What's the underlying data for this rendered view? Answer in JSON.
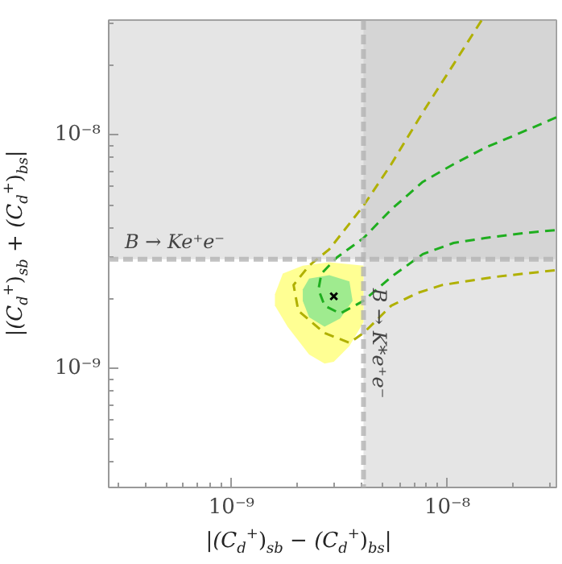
{
  "chart_data": {
    "type": "line",
    "xlabel": "|(C$_{d}$$^{+}$)$_{sb}$ − (C$_{d}$$^{+}$)$_{bs}$|",
    "ylabel": "|(C$_{d}$$^{+}$)$_{sb}$ + (C$_{d}$$^{+}$)$_{bs}$|",
    "log": "xy",
    "grid": false,
    "xlim": [
      2.7e-10,
      3.2e-08
    ],
    "ylim": [
      3.1e-10,
      3.1e-08
    ],
    "xticks": [
      {
        "value": 3e-10,
        "label": null
      },
      {
        "value": 4e-10,
        "label": null
      },
      {
        "value": 5e-10,
        "label": null
      },
      {
        "value": 6e-10,
        "label": null
      },
      {
        "value": 7e-10,
        "label": null
      },
      {
        "value": 8e-10,
        "label": null
      },
      {
        "value": 9e-10,
        "label": null
      },
      {
        "value": 1e-09,
        "label": "10⁻⁹"
      },
      {
        "value": 2e-09,
        "label": null
      },
      {
        "value": 3e-09,
        "label": null
      },
      {
        "value": 4e-09,
        "label": null
      },
      {
        "value": 5e-09,
        "label": null
      },
      {
        "value": 6e-09,
        "label": null
      },
      {
        "value": 7e-09,
        "label": null
      },
      {
        "value": 8e-09,
        "label": null
      },
      {
        "value": 9e-09,
        "label": null
      },
      {
        "value": 1e-08,
        "label": "10⁻⁸"
      },
      {
        "value": 2e-08,
        "label": null
      },
      {
        "value": 3e-08,
        "label": null
      }
    ],
    "yticks": [
      {
        "value": 4e-10,
        "label": null
      },
      {
        "value": 5e-10,
        "label": null
      },
      {
        "value": 6e-10,
        "label": null
      },
      {
        "value": 7e-10,
        "label": null
      },
      {
        "value": 8e-10,
        "label": null
      },
      {
        "value": 9e-10,
        "label": null
      },
      {
        "value": 1e-09,
        "label": "10⁻⁹"
      },
      {
        "value": 2e-09,
        "label": null
      },
      {
        "value": 3e-09,
        "label": null
      },
      {
        "value": 4e-09,
        "label": null
      },
      {
        "value": 5e-09,
        "label": null
      },
      {
        "value": 6e-09,
        "label": null
      },
      {
        "value": 7e-09,
        "label": null
      },
      {
        "value": 8e-09,
        "label": null
      },
      {
        "value": 9e-09,
        "label": null
      },
      {
        "value": 1e-08,
        "label": "10⁻⁸"
      },
      {
        "value": 2e-08,
        "label": null
      },
      {
        "value": 3e-08,
        "label": null
      }
    ],
    "bands": [
      {
        "axis": "x",
        "from": 4.09e-09,
        "to": 3.2e-08,
        "label": "B → K*e⁺e⁻",
        "color": "#bdbdbd"
      },
      {
        "axis": "y",
        "from": 2.94e-09,
        "to": 3.1e-08,
        "label": "B → Ke⁺e⁻",
        "color": "#bdbdbd"
      }
    ],
    "ref_lines": [
      {
        "axis": "x",
        "value": 4.09e-09,
        "color": "#b3b3b3",
        "line_style": "dashed"
      },
      {
        "axis": "y",
        "value": 2.94e-09,
        "color": "#b3b3b3",
        "line_style": "dashed"
      }
    ],
    "series": [
      {
        "type": "area",
        "color": "#ffff80",
        "x": [
          1.59e-09,
          1.73e-09,
          2.14e-09,
          2.84e-09,
          4.09e-09,
          4.09e-09,
          3.52e-09,
          2.98e-09,
          2.7e-09,
          2.29e-09,
          1.82e-09,
          1.59e-09
        ],
        "values": [
          2.08e-09,
          2.55e-09,
          2.76e-09,
          2.85e-09,
          2.76e-09,
          1.58e-09,
          1.25e-09,
          1.07e-09,
          1.05e-09,
          1.15e-09,
          1.51e-09,
          1.86e-09
        ]
      },
      {
        "type": "area",
        "color": "#8ee88e",
        "x": [
          2.14e-09,
          2.29e-09,
          2.84e-09,
          3.52e-09,
          3.64e-09,
          3.19e-09,
          2.7e-09,
          2.29e-09,
          2.14e-09
        ],
        "values": [
          2.18e-09,
          2.43e-09,
          2.51e-09,
          2.36e-09,
          1.95e-09,
          1.64e-09,
          1.51e-09,
          1.66e-09,
          1.95e-09
        ]
      },
      {
        "line_style": "dashed",
        "color": "#b0b000",
        "x": [
          1.44e-08,
          1.07e-08,
          7.7e-09,
          5.5e-09,
          4.09e-09,
          2.84e-09,
          2.29e-09,
          1.94e-09,
          2.04e-09,
          2.7e-09,
          3.52e-09,
          4.09e-09,
          5.5e-09,
          7.3e-09,
          9.5e-09,
          1.67e-08,
          3.2e-08
        ],
        "values": [
          3.09e-08,
          2.01e-08,
          1.25e-08,
          7.5e-09,
          4.98e-09,
          3.24e-09,
          2.76e-09,
          2.28e-09,
          1.77e-09,
          1.42e-09,
          1.29e-09,
          1.42e-09,
          1.86e-09,
          2.11e-09,
          2.28e-09,
          2.47e-09,
          2.64e-09
        ]
      },
      {
        "line_style": "dashed",
        "color": "#1fae1f",
        "x": [
          3.2e-08,
          2.07e-08,
          1.49e-08,
          1.07e-08,
          7.7e-09,
          5.5e-09,
          4.09e-09,
          3.08e-09,
          2.61e-09,
          2.53e-09,
          2.7e-09,
          3.19e-09,
          4.09e-09,
          5.5e-09,
          7.7e-09,
          1.07e-08,
          1.49e-08,
          2.25e-08,
          3.2e-08
        ],
        "values": [
          1.19e-08,
          1e-08,
          8.8e-09,
          7.5e-09,
          6.3e-09,
          4.8e-09,
          3.62e-09,
          2.99e-09,
          2.55e-09,
          2.18e-09,
          1.86e-09,
          1.72e-09,
          1.95e-09,
          2.47e-09,
          3.09e-09,
          3.45e-09,
          3.62e-09,
          3.8e-09,
          3.92e-09
        ]
      },
      {
        "type": "scatter",
        "marker": "cross",
        "color": "#000000",
        "x": [
          2.98e-09
        ],
        "values": [
          2.04e-09
        ]
      }
    ]
  }
}
